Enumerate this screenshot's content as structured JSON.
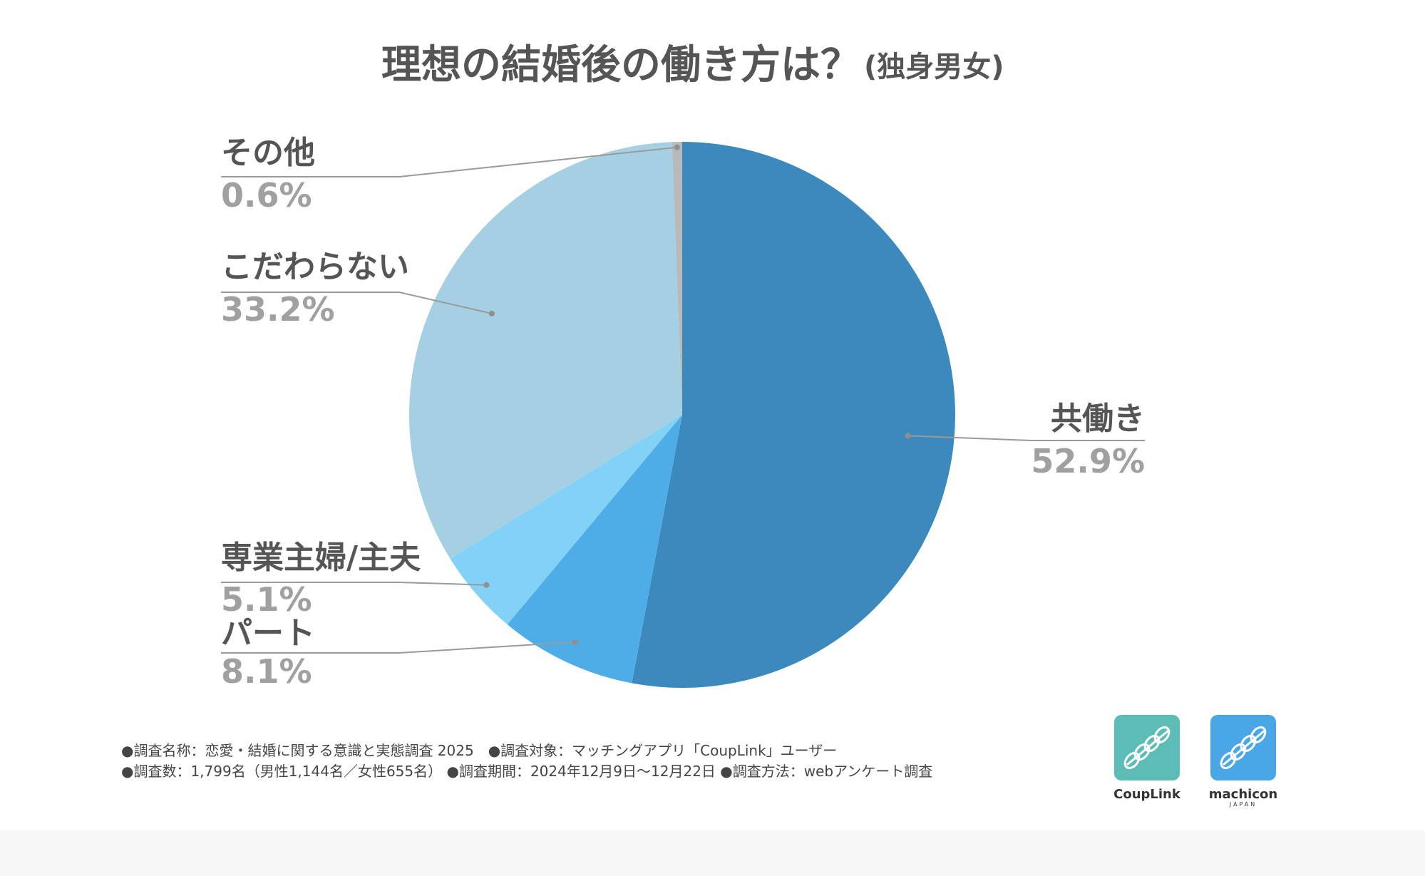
{
  "chart_data": {
    "type": "pie",
    "title": "理想の結婚後の働き方は？",
    "subtitle": "(独身男女)",
    "start": "12 o'clock",
    "direction": "clockwise",
    "slices": [
      {
        "label": "共働き",
        "value": 52.9,
        "display": "52.9%",
        "color": "#3c8abd"
      },
      {
        "label": "パート",
        "value": 8.1,
        "display": "8.1%",
        "color": "#4eade6"
      },
      {
        "label": "専業主婦/主夫",
        "value": 5.1,
        "display": "5.1%",
        "color": "#82d1f7"
      },
      {
        "label": "こだわらない",
        "value": 33.2,
        "display": "33.2%",
        "color": "#a5cfe3"
      },
      {
        "label": "その他",
        "value": 0.6,
        "display": "0.6%",
        "color": "#b9b9b9"
      }
    ]
  },
  "footnotes": {
    "line1": "●調査名称：恋愛・結婚に関する意識と実態調査 2025　●調査対象：マッチングアプリ「CoupLink」ユーザー",
    "line2": "●調査数：1,799名（男性1,144名／女性655名） ●調査期間：2024年12月9日〜12月22日 ●調査方法：webアンケート調査"
  },
  "logos": [
    {
      "name": "CoupLink",
      "caption": "CoupLink",
      "sub": "",
      "color": "#5cbdb6"
    },
    {
      "name": "machicon",
      "caption": "machicon",
      "sub": "JAPAN",
      "color": "#4aa7e6"
    }
  ]
}
